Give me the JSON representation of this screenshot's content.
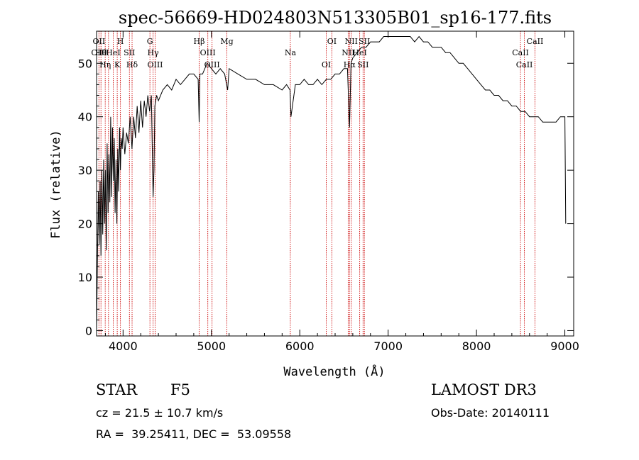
{
  "chart_data": {
    "type": "line",
    "title": "spec-56669-HD024803N513305B01_sp16-177.fits",
    "xlabel": "Wavelength (Å)",
    "ylabel": "Flux (relative)",
    "xlim": [
      3700,
      9100
    ],
    "ylim": [
      -1,
      56
    ],
    "x_ticks": [
      4000,
      5000,
      6000,
      7000,
      8000,
      9000
    ],
    "y_ticks": [
      0,
      10,
      20,
      30,
      40,
      50
    ],
    "grid": false,
    "series": [
      {
        "x": [
          3700,
          3710,
          3720,
          3730,
          3740,
          3750,
          3760,
          3770,
          3780,
          3790,
          3800,
          3810,
          3820,
          3830,
          3840,
          3850,
          3860,
          3870,
          3880,
          3890,
          3900,
          3910,
          3920,
          3930,
          3940,
          3950,
          3960,
          3970,
          3980,
          3990,
          4000,
          4020,
          4040,
          4060,
          4080,
          4101,
          4120,
          4140,
          4160,
          4180,
          4200,
          4220,
          4240,
          4260,
          4280,
          4300,
          4320,
          4340,
          4350,
          4360,
          4380,
          4400,
          4450,
          4500,
          4550,
          4600,
          4650,
          4700,
          4750,
          4800,
          4850,
          4861,
          4870,
          4900,
          4950,
          5000,
          5050,
          5100,
          5150,
          5183,
          5200,
          5300,
          5400,
          5500,
          5600,
          5700,
          5800,
          5850,
          5890,
          5900,
          5950,
          6000,
          6050,
          6100,
          6150,
          6200,
          6250,
          6300,
          6350,
          6400,
          6450,
          6500,
          6540,
          6563,
          6580,
          6600,
          6650,
          6700,
          6750,
          6800,
          6850,
          6900,
          6950,
          7000,
          7050,
          7100,
          7150,
          7200,
          7250,
          7300,
          7350,
          7400,
          7450,
          7500,
          7550,
          7600,
          7650,
          7700,
          7750,
          7800,
          7850,
          7900,
          7950,
          8000,
          8050,
          8100,
          8150,
          8200,
          8250,
          8300,
          8350,
          8400,
          8450,
          8500,
          8550,
          8600,
          8650,
          8700,
          8750,
          8800,
          8850,
          8900,
          8950,
          9000,
          9010
        ],
        "y": [
          0,
          13,
          26,
          16,
          28,
          14,
          30,
          18,
          32,
          20,
          30,
          15,
          35,
          22,
          33,
          24,
          40,
          25,
          38,
          28,
          36,
          22,
          32,
          20,
          34,
          26,
          38,
          30,
          36,
          34,
          38,
          33,
          37,
          35,
          40,
          34,
          40,
          36,
          42,
          37,
          43,
          38,
          43,
          40,
          44,
          41,
          44,
          25,
          30,
          42,
          44,
          43,
          45,
          46,
          45,
          47,
          46,
          47,
          48,
          48,
          47,
          39,
          48,
          48,
          50,
          49,
          48,
          49,
          48,
          45,
          49,
          48,
          47,
          47,
          46,
          46,
          45,
          46,
          45,
          40,
          46,
          46,
          47,
          46,
          46,
          47,
          46,
          47,
          47,
          48,
          48,
          49,
          49,
          38,
          50,
          51,
          52,
          53,
          53,
          54,
          54,
          54,
          55,
          55,
          55,
          55,
          55,
          55,
          55,
          54,
          55,
          54,
          54,
          53,
          53,
          53,
          52,
          52,
          51,
          50,
          50,
          49,
          48,
          47,
          46,
          45,
          45,
          44,
          44,
          43,
          43,
          42,
          42,
          41,
          41,
          40,
          40,
          40,
          39,
          39,
          39,
          39,
          40,
          40,
          20
        ]
      }
    ],
    "lines": [
      {
        "x": 3727,
        "labels": [
          "OII",
          "OIII"
        ]
      },
      {
        "x": 3750,
        "labels": [
          "Hθ"
        ]
      },
      {
        "x": 3798,
        "labels": [
          "Hη"
        ]
      },
      {
        "x": 3835,
        "labels": [
          ""
        ]
      },
      {
        "x": 3889,
        "labels": [
          "HeI"
        ]
      },
      {
        "x": 3934,
        "labels": [
          "K"
        ]
      },
      {
        "x": 3970,
        "labels": [
          "H"
        ]
      },
      {
        "x": 4072,
        "labels": [
          "SII"
        ]
      },
      {
        "x": 4102,
        "labels": [
          "Hδ"
        ]
      },
      {
        "x": 4304,
        "labels": [
          "G"
        ]
      },
      {
        "x": 4340,
        "labels": [
          "Hγ"
        ]
      },
      {
        "x": 4363,
        "labels": [
          "OIII"
        ]
      },
      {
        "x": 4861,
        "labels": [
          "Hβ"
        ]
      },
      {
        "x": 4959,
        "labels": [
          "OIII"
        ]
      },
      {
        "x": 5007,
        "labels": [
          "OIII"
        ]
      },
      {
        "x": 5175,
        "labels": [
          "Mg"
        ]
      },
      {
        "x": 5893,
        "labels": [
          "Na"
        ]
      },
      {
        "x": 6300,
        "labels": [
          "OI"
        ]
      },
      {
        "x": 6363,
        "labels": [
          "OI"
        ]
      },
      {
        "x": 6548,
        "labels": [
          "NII"
        ]
      },
      {
        "x": 6563,
        "labels": [
          "Hα"
        ]
      },
      {
        "x": 6583,
        "labels": [
          "NII"
        ]
      },
      {
        "x": 6678,
        "labels": [
          "HeI"
        ]
      },
      {
        "x": 6716,
        "labels": [
          "SII"
        ]
      },
      {
        "x": 6731,
        "labels": [
          "SII"
        ]
      },
      {
        "x": 8498,
        "labels": [
          "CaII"
        ]
      },
      {
        "x": 8542,
        "labels": [
          "CaII"
        ]
      },
      {
        "x": 8662,
        "labels": [
          "CaII"
        ]
      }
    ]
  },
  "info": {
    "class_label": "STAR",
    "subclass": "F5",
    "survey": "LAMOST DR3",
    "cz_line": "cz = 21.5 ± 10.7 km/s",
    "obs_date_line": "Obs-Date: 20140111",
    "radec_line": "RA =  39.25411, DEC =  53.09558"
  },
  "colors": {
    "axes": "#000000",
    "spectrum": "#000000",
    "line_markers": "#cc0000"
  }
}
